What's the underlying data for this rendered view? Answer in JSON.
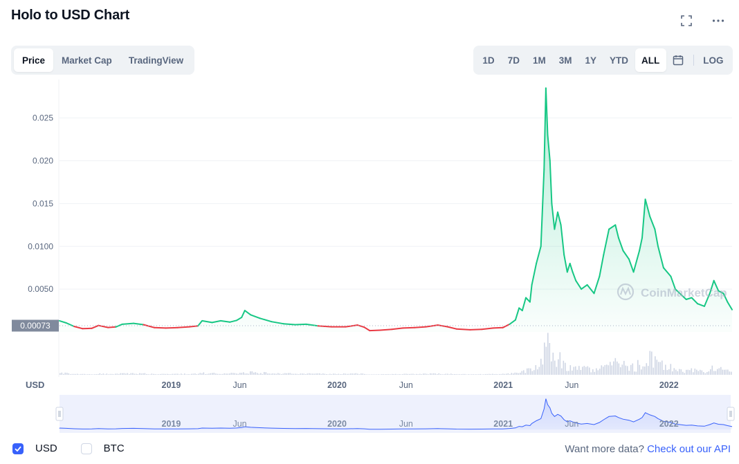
{
  "header": {
    "title": "Holo to USD Chart"
  },
  "icons": {
    "fullscreen": "fullscreen-icon",
    "more": "more-icon",
    "calendar": "calendar-icon",
    "check": "check-icon"
  },
  "tabs": [
    {
      "label": "Price",
      "active": true
    },
    {
      "label": "Market Cap",
      "active": false
    },
    {
      "label": "TradingView",
      "active": false
    }
  ],
  "ranges": [
    {
      "label": "1D",
      "active": false
    },
    {
      "label": "7D",
      "active": false
    },
    {
      "label": "1M",
      "active": false
    },
    {
      "label": "3M",
      "active": false
    },
    {
      "label": "1Y",
      "active": false
    },
    {
      "label": "YTD",
      "active": false
    },
    {
      "label": "ALL",
      "active": true
    }
  ],
  "log_label": "LOG",
  "colors": {
    "up": "#16c784",
    "down": "#ea3943",
    "accent": "#3861fb",
    "tag": "#808a9d"
  },
  "chart_data": {
    "type": "line",
    "currency_label": "USD",
    "watermark": "CoinMarketCap",
    "reference_price": "0.00073",
    "reference_value": 0.00073,
    "ylim": [
      0,
      0.0295
    ],
    "yticks": [
      {
        "label": "0.0050",
        "value": 0.005
      },
      {
        "label": "0.0100",
        "value": 0.01
      },
      {
        "label": "0.015",
        "value": 0.015
      },
      {
        "label": "0.020",
        "value": 0.02
      },
      {
        "label": "0.025",
        "value": 0.025
      }
    ],
    "xlim": [
      "2018-04-30",
      "2022-05-20"
    ],
    "xticks": [
      {
        "label": "2019",
        "date": "2019-01-01",
        "major": true
      },
      {
        "label": "Jun",
        "date": "2019-06-01",
        "major": false
      },
      {
        "label": "2020",
        "date": "2020-01-01",
        "major": true
      },
      {
        "label": "Jun",
        "date": "2020-06-01",
        "major": false
      },
      {
        "label": "2021",
        "date": "2021-01-01",
        "major": true
      },
      {
        "label": "Jun",
        "date": "2021-06-01",
        "major": false
      },
      {
        "label": "2022",
        "date": "2022-01-01",
        "major": true
      }
    ],
    "series": [
      {
        "points": [
          [
            "2018-04-30",
            0.0013
          ],
          [
            "2018-05-15",
            0.00105
          ],
          [
            "2018-06-01",
            0.00065
          ],
          [
            "2018-06-20",
            0.00038
          ],
          [
            "2018-07-10",
            0.00042
          ],
          [
            "2018-07-25",
            0.00075
          ],
          [
            "2018-08-15",
            0.00052
          ],
          [
            "2018-09-01",
            0.00058
          ],
          [
            "2018-09-15",
            0.0009
          ],
          [
            "2018-10-10",
            0.001
          ],
          [
            "2018-11-01",
            0.00085
          ],
          [
            "2018-11-25",
            0.0005
          ],
          [
            "2018-12-20",
            0.00045
          ],
          [
            "2019-01-15",
            0.0005
          ],
          [
            "2019-02-10",
            0.0006
          ],
          [
            "2019-03-01",
            0.0007
          ],
          [
            "2019-03-10",
            0.0013
          ],
          [
            "2019-04-01",
            0.0011
          ],
          [
            "2019-04-20",
            0.0013
          ],
          [
            "2019-05-10",
            0.00115
          ],
          [
            "2019-05-25",
            0.00135
          ],
          [
            "2019-06-05",
            0.0017
          ],
          [
            "2019-06-12",
            0.0025
          ],
          [
            "2019-06-25",
            0.002
          ],
          [
            "2019-07-15",
            0.0016
          ],
          [
            "2019-08-10",
            0.0012
          ],
          [
            "2019-09-05",
            0.00095
          ],
          [
            "2019-10-01",
            0.00085
          ],
          [
            "2019-10-25",
            0.0009
          ],
          [
            "2019-11-20",
            0.0007
          ],
          [
            "2019-12-20",
            0.0006
          ],
          [
            "2020-01-20",
            0.0006
          ],
          [
            "2020-02-15",
            0.0008
          ],
          [
            "2020-03-01",
            0.00055
          ],
          [
            "2020-03-13",
            0.00015
          ],
          [
            "2020-04-05",
            0.0002
          ],
          [
            "2020-05-01",
            0.0003
          ],
          [
            "2020-05-25",
            0.00045
          ],
          [
            "2020-06-20",
            0.0005
          ],
          [
            "2020-07-15",
            0.0006
          ],
          [
            "2020-08-10",
            0.0008
          ],
          [
            "2020-09-01",
            0.0006
          ],
          [
            "2020-09-20",
            0.00035
          ],
          [
            "2020-10-20",
            0.00025
          ],
          [
            "2020-11-15",
            0.0003
          ],
          [
            "2020-12-10",
            0.00045
          ],
          [
            "2020-12-31",
            0.0005
          ],
          [
            "2021-01-15",
            0.0009
          ],
          [
            "2021-01-28",
            0.0014
          ],
          [
            "2021-02-05",
            0.0028
          ],
          [
            "2021-02-12",
            0.0025
          ],
          [
            "2021-02-20",
            0.004
          ],
          [
            "2021-03-01",
            0.0035
          ],
          [
            "2021-03-05",
            0.0055
          ],
          [
            "2021-03-15",
            0.008
          ],
          [
            "2021-03-25",
            0.01
          ],
          [
            "2021-04-01",
            0.019
          ],
          [
            "2021-04-05",
            0.0285
          ],
          [
            "2021-04-09",
            0.023
          ],
          [
            "2021-04-14",
            0.02
          ],
          [
            "2021-04-18",
            0.015
          ],
          [
            "2021-04-24",
            0.012
          ],
          [
            "2021-05-01",
            0.014
          ],
          [
            "2021-05-08",
            0.0125
          ],
          [
            "2021-05-15",
            0.009
          ],
          [
            "2021-05-22",
            0.007
          ],
          [
            "2021-05-28",
            0.008
          ],
          [
            "2021-06-03",
            0.007
          ],
          [
            "2021-06-10",
            0.006
          ],
          [
            "2021-06-22",
            0.005
          ],
          [
            "2021-07-05",
            0.0055
          ],
          [
            "2021-07-20",
            0.0045
          ],
          [
            "2021-08-01",
            0.0065
          ],
          [
            "2021-08-10",
            0.009
          ],
          [
            "2021-08-22",
            0.012
          ],
          [
            "2021-09-05",
            0.0125
          ],
          [
            "2021-09-12",
            0.011
          ],
          [
            "2021-09-22",
            0.0095
          ],
          [
            "2021-10-05",
            0.0085
          ],
          [
            "2021-10-15",
            0.007
          ],
          [
            "2021-10-28",
            0.0095
          ],
          [
            "2021-11-03",
            0.011
          ],
          [
            "2021-11-10",
            0.0155
          ],
          [
            "2021-11-20",
            0.0135
          ],
          [
            "2021-12-01",
            0.012
          ],
          [
            "2021-12-08",
            0.01
          ],
          [
            "2021-12-20",
            0.0075
          ],
          [
            "2022-01-05",
            0.0065
          ],
          [
            "2022-01-15",
            0.005
          ],
          [
            "2022-01-25",
            0.0045
          ],
          [
            "2022-02-08",
            0.0038
          ],
          [
            "2022-02-20",
            0.004
          ],
          [
            "2022-03-05",
            0.0033
          ],
          [
            "2022-03-20",
            0.003
          ],
          [
            "2022-04-01",
            0.0045
          ],
          [
            "2022-04-10",
            0.006
          ],
          [
            "2022-04-20",
            0.0048
          ],
          [
            "2022-05-01",
            0.0045
          ],
          [
            "2022-05-10",
            0.0035
          ],
          [
            "2022-05-20",
            0.0026
          ]
        ]
      }
    ]
  },
  "footer": {
    "usd_label": "USD",
    "btc_label": "BTC",
    "more_data_text": "Want more data?",
    "api_link": "Check out our API"
  }
}
